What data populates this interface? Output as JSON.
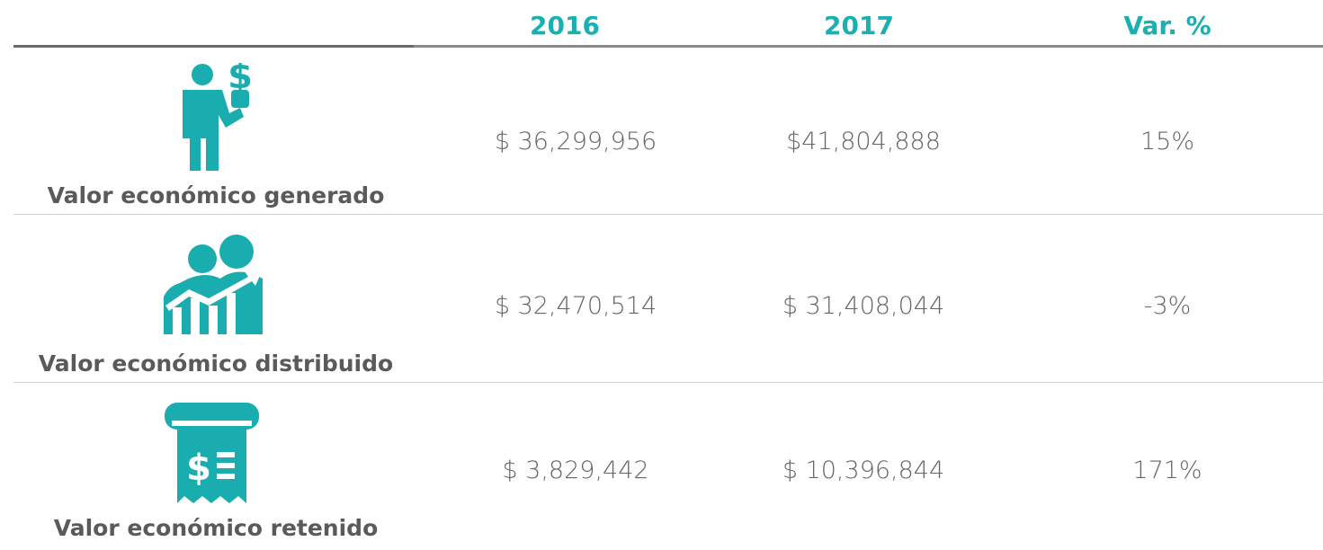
{
  "table": {
    "header": [
      "2016",
      "2017",
      "Var. %"
    ],
    "rows": [
      {
        "label": "Valor económico generado",
        "cells": [
          "$ 36,299,956",
          "$41,804,888",
          "15%"
        ]
      },
      {
        "label": "Valor económico distribuido",
        "cells": [
          "$ 32,470,514",
          "$ 31,408,044",
          "-3%"
        ]
      },
      {
        "label": "Valor económico retenido",
        "cells": [
          "$ 3,829,442",
          "$ 10,396,844",
          "171%"
        ]
      }
    ]
  }
}
